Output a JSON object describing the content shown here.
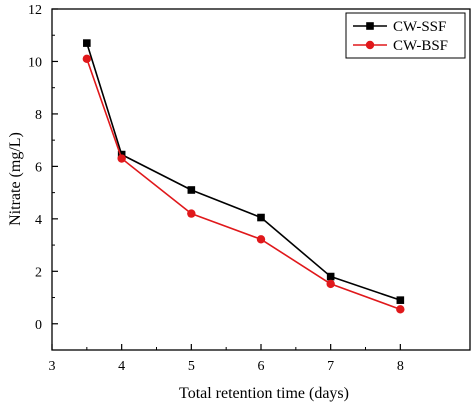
{
  "chart_data": {
    "type": "line",
    "xlabel": "Total retention time (days)",
    "ylabel": "Nitrate (mg/L)",
    "xlim": [
      3,
      9
    ],
    "ylim": [
      -1,
      12
    ],
    "x_ticks": [
      3,
      4,
      5,
      6,
      7,
      8
    ],
    "y_ticks": [
      0,
      2,
      4,
      6,
      8,
      10,
      12
    ],
    "grid": false,
    "legend_position": "top-right",
    "series": [
      {
        "name": "CW-SSF",
        "color": "#000000",
        "marker": "square",
        "x": [
          3.5,
          4,
          5,
          6,
          7,
          8
        ],
        "y": [
          10.7,
          6.45,
          5.1,
          4.05,
          1.8,
          0.9
        ]
      },
      {
        "name": "CW-BSF",
        "color": "#e0181b",
        "marker": "circle",
        "x": [
          3.5,
          4,
          5,
          6,
          7,
          8
        ],
        "y": [
          10.1,
          6.3,
          4.2,
          3.22,
          1.52,
          0.55
        ]
      }
    ]
  }
}
